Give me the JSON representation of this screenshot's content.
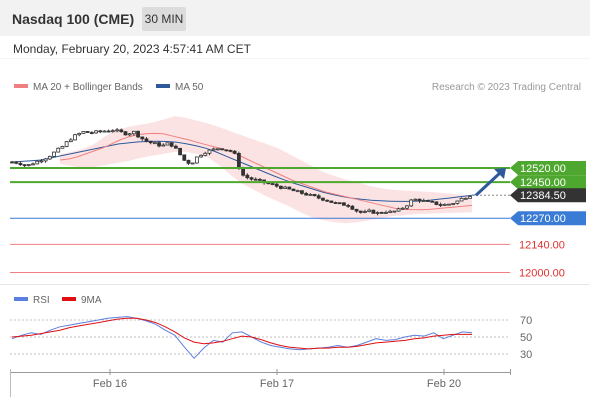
{
  "header": {
    "title": "Nasdaq 100 (CME)",
    "interval": "30 MIN",
    "datetime": "Monday, February 20, 2023 4:57:41 AM CET"
  },
  "legend": {
    "ma20_label": "MA 20 + Bollinger Bands",
    "ma20_color": "#f08080",
    "ma50_label": "MA 50",
    "ma50_color": "#2e5a9c",
    "credit": "Research © 2023 Trading Central"
  },
  "rsi_legend": {
    "rsi_label": "RSI",
    "rsi_color": "#5b7fe0",
    "ma9_label": "9MA",
    "ma9_color": "#e01010"
  },
  "chart_data": [
    {
      "type": "line",
      "title": "",
      "x_ticks": [
        "Feb 16",
        "Feb 17",
        "Feb 20"
      ],
      "y_range": [
        11960,
        12700
      ],
      "levels": [
        {
          "label": "12520.00",
          "value": 12520,
          "kind": "resistance",
          "color": "#4ea72e"
        },
        {
          "label": "12450.00",
          "value": 12450,
          "kind": "resistance",
          "color": "#4ea72e"
        },
        {
          "label": "12384.50",
          "value": 12384.5,
          "kind": "last",
          "color": "#333333"
        },
        {
          "label": "12270.00",
          "value": 12270,
          "kind": "pivot",
          "color": "#3a7bd5"
        },
        {
          "label": "12140.00",
          "value": 12140,
          "kind": "support",
          "color": "#f08080"
        },
        {
          "label": "12000.00",
          "value": 12000,
          "kind": "support",
          "color": "#f08080"
        }
      ],
      "price_path": [
        12550,
        12545,
        12530,
        12545,
        12560,
        12575,
        12600,
        12625,
        12660,
        12685,
        12700,
        12695,
        12700,
        12705,
        12710,
        12700,
        12690,
        12700,
        12670,
        12650,
        12640,
        12630,
        12645,
        12610,
        12560,
        12540,
        12580,
        12600,
        12610,
        12620,
        12610,
        12600,
        12490,
        12470,
        12460,
        12450,
        12440,
        12430,
        12420,
        12410,
        12400,
        12390,
        12380,
        12370,
        12360,
        12345,
        12340,
        12335,
        12310,
        12295,
        12305,
        12295,
        12305,
        12300,
        12310,
        12330,
        12365,
        12360,
        12350,
        12345,
        12335,
        12340,
        12350,
        12370,
        12384.5
      ],
      "ma20_path": [
        12560,
        12565,
        12575,
        12590,
        12605,
        12620,
        12640,
        12660,
        12675,
        12685,
        12690,
        12692,
        12690,
        12680,
        12670,
        12660,
        12648,
        12636,
        12625,
        12615,
        12600,
        12580,
        12560,
        12540,
        12520,
        12500,
        12480,
        12460,
        12445,
        12430,
        12415,
        12400,
        12390,
        12380,
        12370,
        12360,
        12350,
        12340,
        12330,
        12320,
        12315,
        12313,
        12312,
        12314,
        12318,
        12322,
        12326,
        12330,
        12334
      ],
      "ma50_path": [
        12550,
        12553,
        12556,
        12560,
        12570,
        12580,
        12590,
        12600,
        12610,
        12620,
        12630,
        12640,
        12645,
        12650,
        12652,
        12653,
        12652,
        12648,
        12640,
        12630,
        12618,
        12600,
        12580,
        12560,
        12540,
        12520,
        12500,
        12480,
        12462,
        12445,
        12430,
        12415,
        12400,
        12388,
        12378,
        12370,
        12364,
        12360,
        12357,
        12355,
        12354,
        12354,
        12356,
        12360,
        12365,
        12370,
        12376,
        12382,
        12388
      ],
      "bb_upper": [
        12590,
        12600,
        12615,
        12640,
        12680,
        12710,
        12725,
        12735,
        12745,
        12760,
        12778,
        12770,
        12755,
        12740,
        12722,
        12700,
        12680,
        12660,
        12640,
        12620,
        12590,
        12560,
        12530,
        12500,
        12480,
        12462,
        12448,
        12432,
        12420,
        12412,
        12408,
        12405,
        12402,
        12398,
        12393,
        12388,
        12385
      ],
      "bb_lower": [
        12540,
        12530,
        12520,
        12525,
        12535,
        12545,
        12555,
        12570,
        12580,
        12590,
        12600,
        12600,
        12590,
        12570,
        12530,
        12480,
        12440,
        12410,
        12380,
        12355,
        12330,
        12300,
        12275,
        12260,
        12250,
        12245,
        12250,
        12260,
        12270,
        12280,
        12285,
        12290,
        12292,
        12294,
        12296,
        12298,
        12300
      ],
      "forecast_arrow": {
        "from": 12384.5,
        "to": 12520
      }
    },
    {
      "type": "line",
      "title": "",
      "x_ticks": [
        "Feb 16",
        "Feb 17",
        "Feb 20"
      ],
      "y_range": [
        20,
        80
      ],
      "y_ticks": [
        70,
        50,
        30
      ],
      "series": [
        {
          "name": "RSI",
          "values": [
            48,
            52,
            55,
            53,
            58,
            62,
            64,
            66,
            68,
            70,
            72,
            73,
            74,
            72,
            69,
            65,
            58,
            52,
            38,
            25,
            37,
            46,
            44,
            55,
            56,
            50,
            44,
            40,
            38,
            36,
            35,
            36,
            37,
            38,
            40,
            38,
            40,
            44,
            48,
            46,
            47,
            50,
            52,
            51,
            55,
            48,
            52,
            56,
            55
          ]
        },
        {
          "name": "9MA",
          "values": [
            50,
            51,
            52,
            54,
            56,
            58,
            61,
            63,
            65,
            67,
            69,
            71,
            72,
            72,
            70,
            67,
            62,
            56,
            49,
            44,
            42,
            43,
            45,
            48,
            51,
            50,
            47,
            43,
            40,
            38,
            37,
            36,
            37,
            37,
            38,
            38,
            39,
            41,
            43,
            44,
            45,
            46,
            48,
            49,
            51,
            52,
            53,
            53,
            53
          ]
        }
      ]
    }
  ]
}
